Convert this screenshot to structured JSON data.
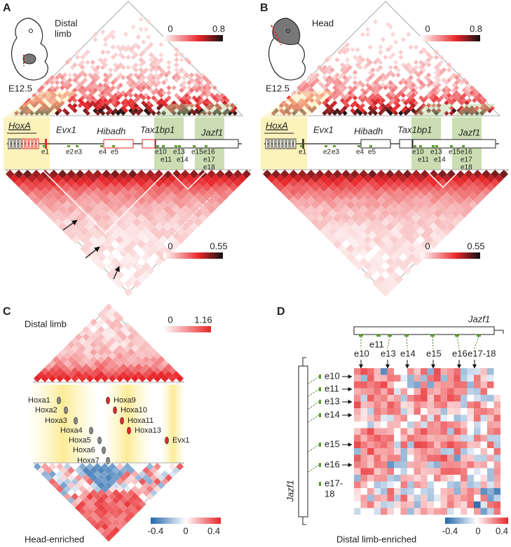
{
  "panels": [
    {
      "letter": "A",
      "tissue": [
        "Distal",
        "limb"
      ],
      "stage": "E12.5",
      "top_scale": [
        "0",
        "0.8"
      ],
      "genes": [
        "HoxA",
        "Evx1",
        "Hibadh",
        "Tax1bp1",
        "Jazf1"
      ],
      "elements": [
        "e1",
        "e2",
        "e3",
        "e4",
        "e5",
        "e10",
        "e11",
        "e13",
        "e14",
        "e15",
        "e16",
        "e17",
        "e18"
      ],
      "bottom_scale": [
        "0",
        "0.55"
      ]
    },
    {
      "letter": "B",
      "tissue": [
        "Head"
      ],
      "stage": "E12.5",
      "top_scale": [
        "0",
        "0.8"
      ],
      "genes": [
        "HoxA",
        "Evx1",
        "Hibadh",
        "Tax1bp1",
        "Jazf1"
      ],
      "elements": [
        "e1",
        "e2",
        "e3",
        "e4",
        "e5",
        "e10",
        "e11",
        "e13",
        "e14",
        "e15",
        "e16",
        "e17",
        "e18"
      ],
      "bottom_scale": [
        "0",
        "0.55"
      ]
    }
  ],
  "panel_c": {
    "letter": "C",
    "title": "Distal limb",
    "top_scale": [
      "0",
      "1.16"
    ],
    "genes": [
      "Hoxa1",
      "Hoxa2",
      "Hoxa3",
      "Hoxa4",
      "Hoxa5",
      "Hoxa6",
      "Hoxa7",
      "Hoxa9",
      "Hoxa10",
      "Hoxa11",
      "Hoxa13",
      "Evx1"
    ],
    "bottom_title": "Head-enriched",
    "bottom_scale": [
      "-0.4",
      "0",
      "0.4"
    ]
  },
  "panel_d": {
    "letter": "D",
    "gene": "Jazf1",
    "top_elements": [
      "e11",
      "e10",
      "e13",
      "e14",
      "e15",
      "e16",
      "e17-18"
    ],
    "side_elements": [
      "e10",
      "e11",
      "e13",
      "e14",
      "e15",
      "e16"
    ],
    "side_last": [
      "e17-",
      "18"
    ],
    "side_gene": "Jazf1",
    "bottom_title": "Distal limb-enriched",
    "scale": [
      "-0.4",
      "0",
      "0.4"
    ]
  }
}
